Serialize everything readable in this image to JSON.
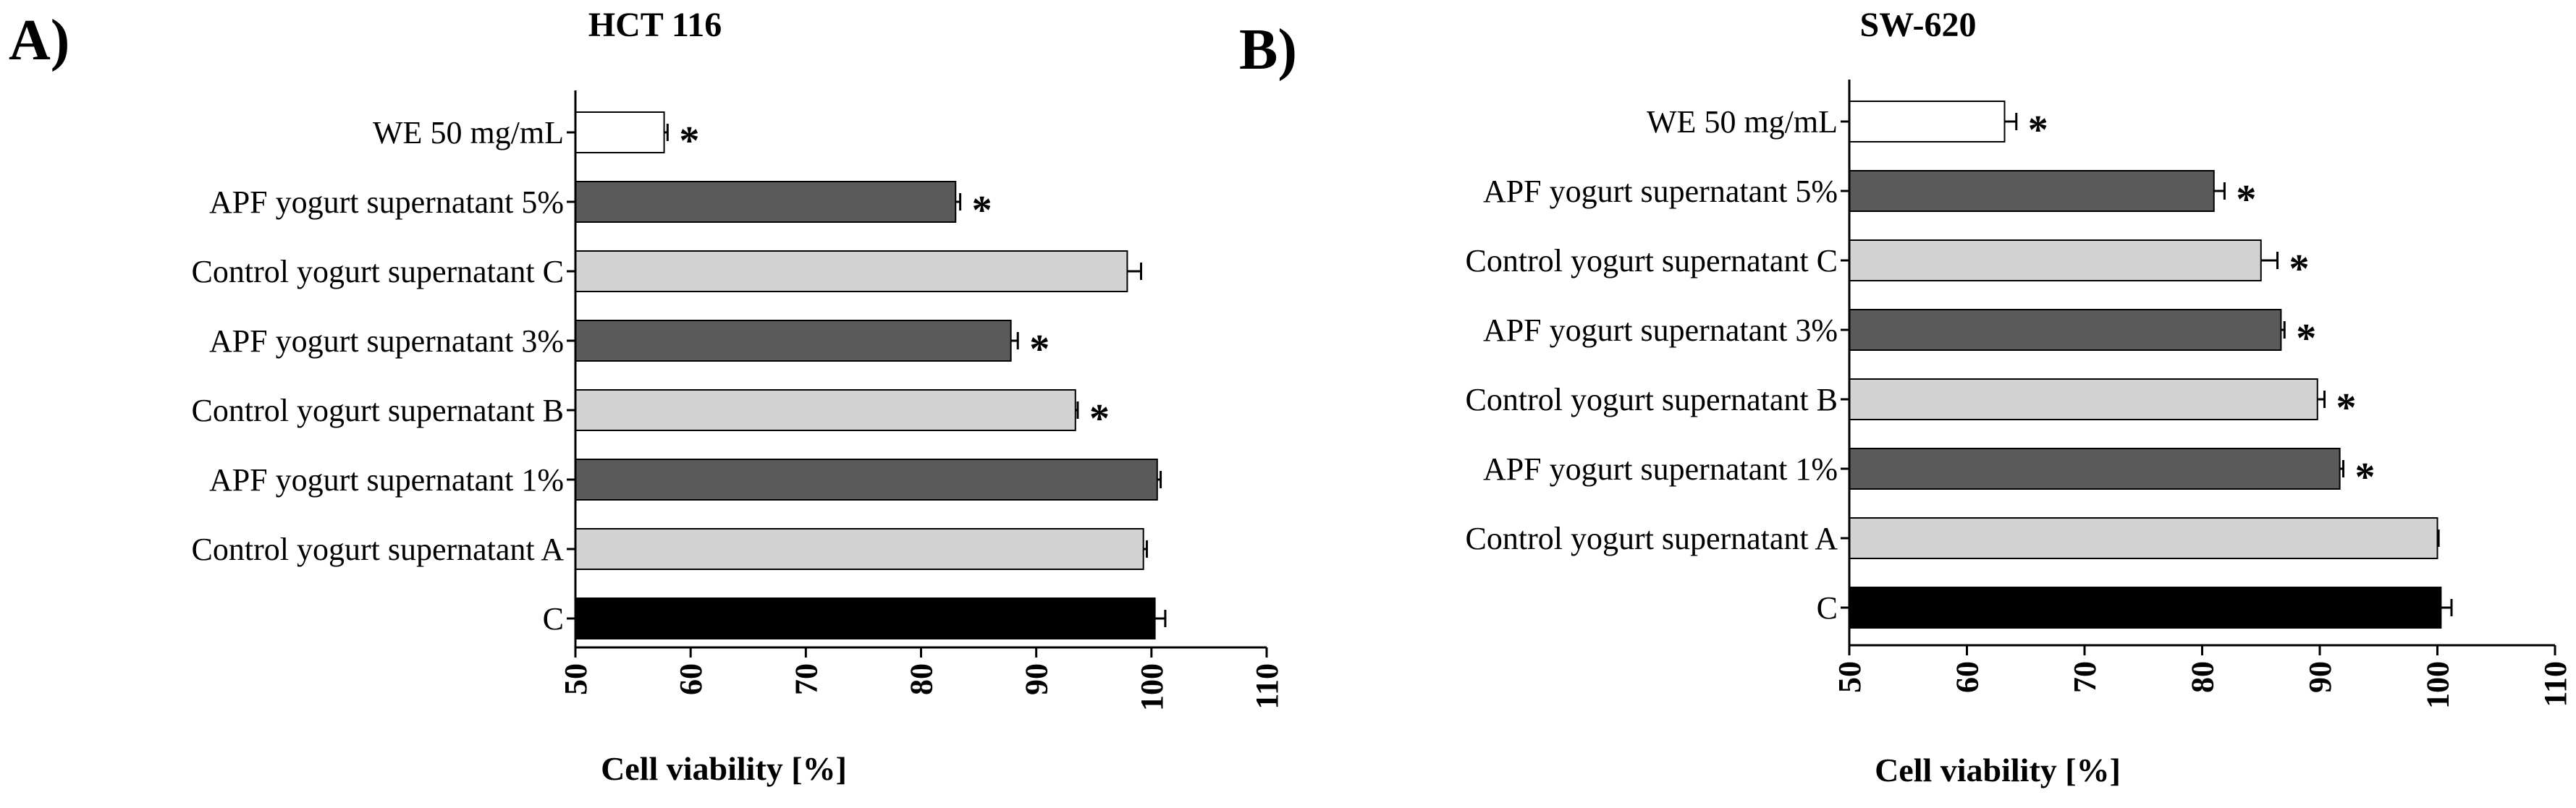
{
  "chart_data": [
    {
      "type": "bar",
      "orientation": "horizontal",
      "panel_label": "A)",
      "title": "HCT 116",
      "xlabel": "Cell viability [%]",
      "ylabel": "",
      "xlim": [
        50,
        110
      ],
      "xticks": [
        "50",
        "60",
        "70",
        "80",
        "90",
        "100",
        "110"
      ],
      "categories": [
        "WE 50 mg/mL",
        "APF yogurt supernatant 5%",
        "Control yogurt supernatant C",
        "APF yogurt supernatant 3%",
        "Control yogurt supernatant B",
        "APF yogurt supernatant 1%",
        "Control yogurt supernatant A",
        "C"
      ],
      "values": [
        57.7,
        83.0,
        97.9,
        87.8,
        93.4,
        100.5,
        99.3,
        100.3
      ],
      "errors": [
        0.3,
        0.4,
        1.2,
        0.6,
        0.2,
        0.3,
        0.3,
        0.9
      ],
      "significance": [
        "*",
        "*",
        "",
        "*",
        "*",
        "",
        "",
        ""
      ],
      "fill_colors": [
        "#ffffff",
        "#5a5a5a",
        "#d3d3d3",
        "#5a5a5a",
        "#d3d3d3",
        "#5a5a5a",
        "#d3d3d3",
        "#000000"
      ]
    },
    {
      "type": "bar",
      "orientation": "horizontal",
      "panel_label": "B)",
      "title": "SW-620",
      "xlabel": "Cell viability [%]",
      "ylabel": "",
      "xlim": [
        50,
        110
      ],
      "xticks": [
        "50",
        "60",
        "70",
        "80",
        "90",
        "100",
        "110"
      ],
      "categories": [
        "WE 50 mg/mL",
        "APF yogurt supernatant 5%",
        "Control yogurt supernatant C",
        "APF yogurt supernatant 3%",
        "Control yogurt supernatant B",
        "APF yogurt supernatant 1%",
        "Control yogurt supernatant A",
        "C"
      ],
      "values": [
        63.2,
        81.0,
        85.0,
        86.7,
        89.8,
        91.7,
        100.0,
        100.3
      ],
      "errors": [
        1.0,
        0.9,
        1.4,
        0.3,
        0.6,
        0.3,
        0.1,
        0.9
      ],
      "significance": [
        "*",
        "*",
        "*",
        "*",
        "*",
        "*",
        "",
        ""
      ],
      "fill_colors": [
        "#ffffff",
        "#5a5a5a",
        "#d3d3d3",
        "#5a5a5a",
        "#d3d3d3",
        "#5a5a5a",
        "#d3d3d3",
        "#000000"
      ]
    }
  ]
}
